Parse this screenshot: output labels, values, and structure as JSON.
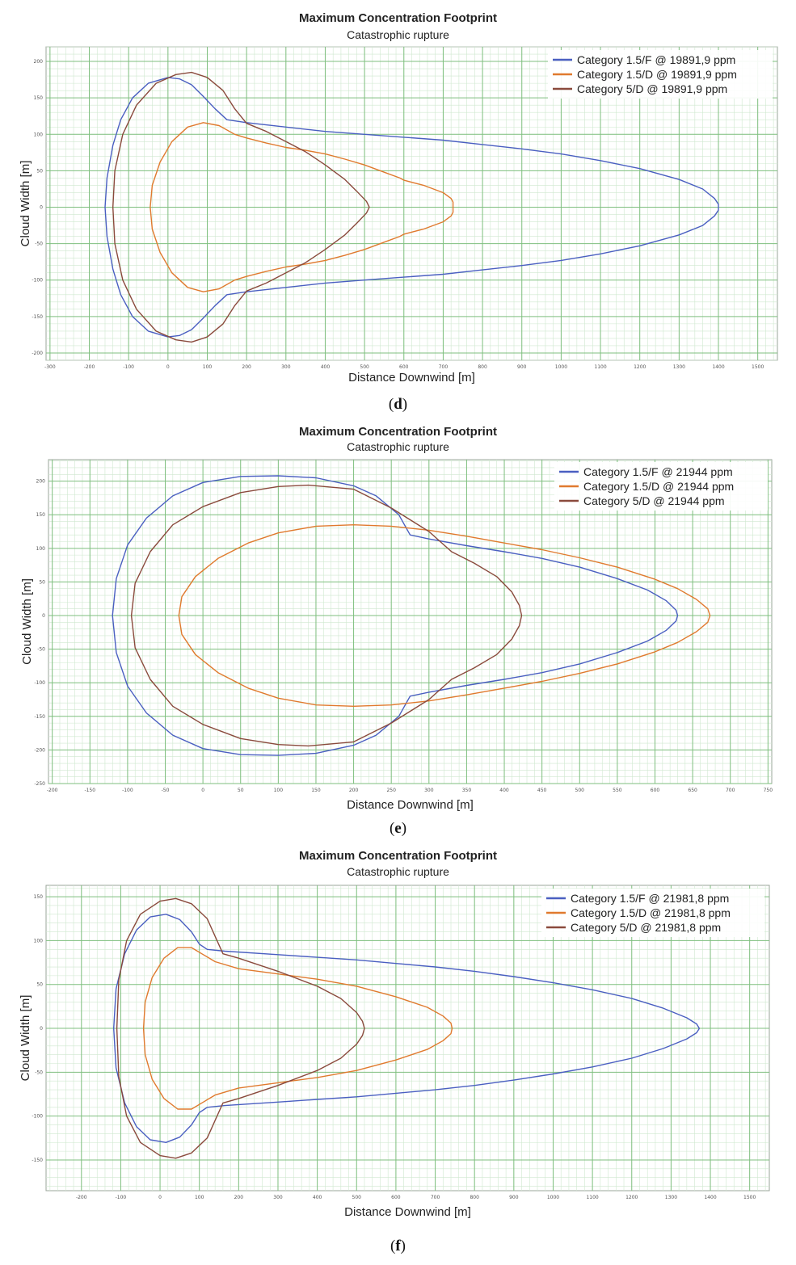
{
  "chart_data": [
    {
      "type": "line",
      "panel_label": "d",
      "title": "Maximum Concentration Footprint",
      "subtitle": "Catastrophic rupture",
      "xlabel": "Distance Downwind [m]",
      "ylabel": "Cloud Width [m]",
      "xlim": [
        -310,
        1550
      ],
      "ylim": [
        -210,
        220
      ],
      "xticks": [
        -300,
        -200,
        -100,
        0,
        100,
        200,
        300,
        400,
        500,
        600,
        700,
        800,
        900,
        1000,
        1100,
        1200,
        1300,
        1400,
        1500
      ],
      "yticks": [
        -200,
        -150,
        -100,
        -50,
        0,
        50,
        100,
        150,
        200
      ],
      "x_major_step": 100,
      "y_major_step": 50,
      "grid": true,
      "legend_position": "top-right",
      "series": [
        {
          "name": "Category 1.5/F @ 19891,9 ppm",
          "color": "#4a5fc1",
          "x": [
            -160,
            -155,
            -140,
            -120,
            -90,
            -50,
            0,
            30,
            60,
            90,
            120,
            150,
            200,
            300,
            400,
            500,
            600,
            700,
            800,
            900,
            1000,
            1100,
            1200,
            1300,
            1360,
            1390,
            1400,
            1400,
            1390,
            1360,
            1300,
            1200,
            1100,
            1000,
            900,
            800,
            700,
            600,
            500,
            400,
            300,
            200,
            150,
            120,
            90,
            60,
            30,
            0,
            -50,
            -90,
            -120,
            -140,
            -155,
            -160
          ],
          "y": [
            0,
            -40,
            -85,
            -120,
            -150,
            -170,
            -178,
            -176,
            -168,
            -152,
            -135,
            -120,
            -116,
            -110,
            -104,
            -100,
            -96,
            -92,
            -86,
            -80,
            -73,
            -64,
            -53,
            -38,
            -25,
            -12,
            -4,
            4,
            12,
            25,
            38,
            53,
            64,
            73,
            80,
            86,
            92,
            96,
            100,
            104,
            110,
            116,
            120,
            135,
            152,
            168,
            176,
            178,
            170,
            150,
            120,
            85,
            40,
            0
          ]
        },
        {
          "name": "Category 1.5/D @ 19891,9 ppm",
          "color": "#e07a2e",
          "x": [
            -45,
            -40,
            -20,
            10,
            50,
            90,
            130,
            170,
            200,
            250,
            300,
            350,
            400,
            450,
            500,
            550,
            590,
            600,
            650,
            700,
            720,
            725,
            725,
            720,
            700,
            650,
            600,
            590,
            550,
            500,
            450,
            400,
            350,
            300,
            250,
            200,
            170,
            130,
            90,
            50,
            10,
            -20,
            -40,
            -45
          ],
          "y": [
            0,
            -30,
            -62,
            -90,
            -110,
            -116,
            -112,
            -100,
            -95,
            -88,
            -82,
            -78,
            -73,
            -66,
            -58,
            -48,
            -40,
            -37,
            -30,
            -20,
            -12,
            -7,
            7,
            12,
            20,
            30,
            37,
            40,
            48,
            58,
            66,
            73,
            78,
            82,
            88,
            95,
            100,
            112,
            116,
            110,
            90,
            62,
            30,
            0
          ]
        },
        {
          "name": "Category 5/D @ 19891,9 ppm",
          "color": "#8a4a3c",
          "x": [
            -140,
            -135,
            -115,
            -80,
            -30,
            20,
            60,
            100,
            140,
            170,
            200,
            250,
            300,
            350,
            400,
            450,
            480,
            505,
            512,
            505,
            480,
            450,
            400,
            350,
            300,
            250,
            200,
            170,
            140,
            100,
            60,
            20,
            -30,
            -80,
            -115,
            -135,
            -140
          ],
          "y": [
            0,
            -50,
            -100,
            -140,
            -170,
            -182,
            -185,
            -178,
            -160,
            -135,
            -115,
            -104,
            -90,
            -76,
            -58,
            -38,
            -22,
            -8,
            0,
            8,
            22,
            38,
            58,
            76,
            90,
            104,
            115,
            135,
            160,
            178,
            185,
            182,
            170,
            140,
            100,
            50,
            0
          ]
        }
      ]
    },
    {
      "type": "line",
      "panel_label": "e",
      "title": "Maximum Concentration Footprint",
      "subtitle": "Catastrophic rupture",
      "xlabel": "Distance Downwind [m]",
      "ylabel": "Cloud Width [m]",
      "xlim": [
        -205,
        755
      ],
      "ylim": [
        -250,
        232
      ],
      "xticks": [
        -200,
        -150,
        -100,
        -50,
        0,
        50,
        100,
        150,
        200,
        250,
        300,
        350,
        400,
        450,
        500,
        550,
        600,
        650,
        700,
        750
      ],
      "yticks": [
        -250,
        -200,
        -150,
        -100,
        -50,
        0,
        50,
        100,
        150,
        200
      ],
      "x_major_step": 50,
      "y_major_step": 50,
      "grid": true,
      "legend_position": "top-right",
      "series": [
        {
          "name": "Category 1.5/F @ 21944 ppm",
          "color": "#4a5fc1",
          "x": [
            -120,
            -115,
            -100,
            -75,
            -40,
            0,
            50,
            100,
            150,
            200,
            230,
            260,
            275,
            300,
            350,
            400,
            450,
            500,
            550,
            590,
            615,
            628,
            630,
            628,
            615,
            590,
            550,
            500,
            450,
            400,
            350,
            300,
            275,
            260,
            230,
            200,
            150,
            100,
            50,
            0,
            -40,
            -75,
            -100,
            -115,
            -120
          ],
          "y": [
            0,
            -55,
            -105,
            -145,
            -178,
            -198,
            -207,
            -208,
            -205,
            -193,
            -178,
            -150,
            -120,
            -114,
            -104,
            -95,
            -85,
            -72,
            -55,
            -38,
            -22,
            -8,
            0,
            8,
            22,
            38,
            55,
            72,
            85,
            95,
            104,
            114,
            120,
            150,
            178,
            193,
            205,
            208,
            207,
            198,
            178,
            145,
            105,
            55,
            0
          ]
        },
        {
          "name": "Category 1.5/D @ 21944 ppm",
          "color": "#e07a2e",
          "x": [
            -32,
            -28,
            -10,
            20,
            60,
            100,
            150,
            200,
            250,
            300,
            350,
            400,
            450,
            500,
            550,
            600,
            630,
            655,
            670,
            673,
            670,
            655,
            630,
            600,
            550,
            500,
            450,
            400,
            350,
            300,
            250,
            200,
            150,
            100,
            60,
            20,
            -10,
            -28,
            -32
          ],
          "y": [
            0,
            -28,
            -58,
            -85,
            -108,
            -123,
            -133,
            -135,
            -133,
            -127,
            -118,
            -108,
            -98,
            -86,
            -72,
            -54,
            -40,
            -24,
            -10,
            0,
            10,
            24,
            40,
            54,
            72,
            86,
            98,
            108,
            118,
            127,
            133,
            135,
            133,
            123,
            108,
            85,
            58,
            28,
            0
          ]
        },
        {
          "name": "Category 5/D @ 21944 ppm",
          "color": "#8a4a3c",
          "x": [
            -95,
            -90,
            -70,
            -40,
            0,
            50,
            100,
            140,
            200,
            250,
            300,
            330,
            360,
            390,
            410,
            420,
            423,
            420,
            410,
            390,
            360,
            330,
            300,
            250,
            200,
            140,
            100,
            50,
            0,
            -40,
            -70,
            -90,
            -95
          ],
          "y": [
            0,
            -48,
            -95,
            -135,
            -162,
            -183,
            -192,
            -194,
            -188,
            -160,
            -125,
            -95,
            -78,
            -58,
            -35,
            -15,
            0,
            15,
            35,
            58,
            78,
            95,
            125,
            160,
            188,
            194,
            192,
            183,
            162,
            135,
            95,
            48,
            0
          ]
        }
      ]
    },
    {
      "type": "line",
      "panel_label": "f",
      "title": "Maximum Concentration Footprint",
      "subtitle": "Catastrophic rupture",
      "xlabel": "Distance Downwind [m]",
      "ylabel": "Cloud Width [m]",
      "xlim": [
        -290,
        1550
      ],
      "ylim": [
        -185,
        163
      ],
      "xticks": [
        -200,
        -100,
        0,
        100,
        200,
        300,
        400,
        500,
        600,
        700,
        800,
        900,
        1000,
        1100,
        1200,
        1300,
        1400,
        1500
      ],
      "yticks": [
        -150,
        -100,
        -50,
        0,
        50,
        100,
        150
      ],
      "x_major_step": 100,
      "y_major_step": 50,
      "grid": true,
      "legend_position": "top-right",
      "series": [
        {
          "name": "Category 1.5/F @ 21981,8 ppm",
          "color": "#4a5fc1",
          "x": [
            -118,
            -112,
            -90,
            -60,
            -25,
            15,
            50,
            80,
            100,
            120,
            165,
            300,
            400,
            500,
            600,
            700,
            800,
            900,
            1000,
            1100,
            1200,
            1280,
            1340,
            1365,
            1372,
            1365,
            1340,
            1280,
            1200,
            1100,
            1000,
            900,
            800,
            700,
            600,
            500,
            400,
            300,
            165,
            120,
            100,
            80,
            50,
            15,
            -25,
            -60,
            -90,
            -112,
            -118
          ],
          "y": [
            0,
            -45,
            -85,
            -112,
            -127,
            -130,
            -124,
            -110,
            -96,
            -90,
            -88,
            -84,
            -81,
            -78,
            -74,
            -70,
            -65,
            -59,
            -52,
            -44,
            -34,
            -23,
            -12,
            -5,
            0,
            5,
            12,
            23,
            34,
            44,
            52,
            59,
            65,
            70,
            74,
            78,
            81,
            84,
            88,
            90,
            96,
            110,
            124,
            130,
            127,
            112,
            85,
            45,
            0
          ]
        },
        {
          "name": "Category 1.5/D @ 21981,8 ppm",
          "color": "#e07a2e",
          "x": [
            -42,
            -38,
            -20,
            10,
            45,
            80,
            110,
            140,
            200,
            300,
            400,
            500,
            600,
            680,
            720,
            740,
            743,
            740,
            720,
            680,
            600,
            500,
            400,
            300,
            200,
            140,
            110,
            80,
            45,
            10,
            -20,
            -38,
            -42
          ],
          "y": [
            0,
            -30,
            -58,
            -80,
            -92,
            -92,
            -84,
            -76,
            -68,
            -62,
            -56,
            -48,
            -36,
            -24,
            -14,
            -6,
            0,
            6,
            14,
            24,
            36,
            48,
            56,
            62,
            68,
            76,
            84,
            92,
            92,
            80,
            58,
            30,
            0
          ]
        },
        {
          "name": "Category 5/D @ 21981,8 ppm",
          "color": "#8a4a3c",
          "x": [
            -110,
            -105,
            -85,
            -50,
            0,
            40,
            80,
            120,
            160,
            200,
            300,
            400,
            460,
            500,
            515,
            520,
            515,
            500,
            460,
            400,
            300,
            200,
            160,
            120,
            80,
            40,
            0,
            -50,
            -85,
            -105,
            -110
          ],
          "y": [
            0,
            -55,
            -100,
            -130,
            -145,
            -148,
            -142,
            -125,
            -85,
            -80,
            -65,
            -48,
            -34,
            -18,
            -8,
            0,
            8,
            18,
            34,
            48,
            65,
            80,
            85,
            125,
            142,
            148,
            145,
            130,
            100,
            55,
            0
          ]
        }
      ]
    }
  ]
}
